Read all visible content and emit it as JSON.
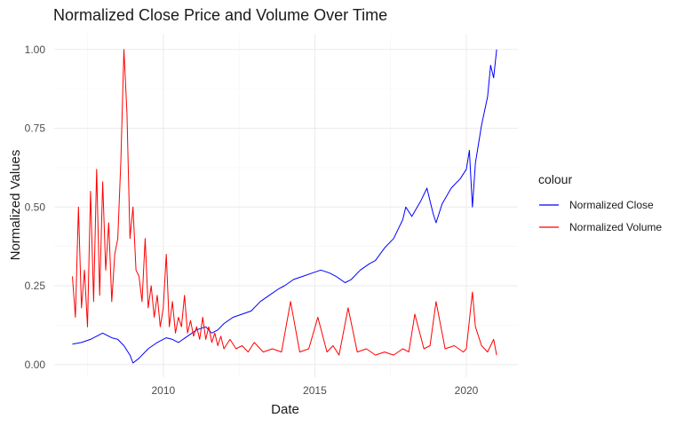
{
  "chart_data": {
    "type": "line",
    "title": "Normalized Close Price and Volume Over Time",
    "xlabel": "Date",
    "ylabel": "Normalized Values",
    "xlim": [
      2006.4,
      2021.7
    ],
    "ylim": [
      -0.04,
      1.05
    ],
    "x_ticks": [
      2010,
      2015,
      2020
    ],
    "y_ticks": [
      0.0,
      0.25,
      0.5,
      0.75,
      1.0
    ],
    "y_tick_labels": [
      "0.00",
      "0.25",
      "0.50",
      "0.75",
      "1.00"
    ],
    "grid": true,
    "legend": {
      "title": "colour",
      "position": "right"
    },
    "series": [
      {
        "name": "Normalized Close",
        "color": "#0000ff",
        "x": [
          2007.0,
          2007.3,
          2007.6,
          2007.8,
          2008.0,
          2008.3,
          2008.5,
          2008.7,
          2008.9,
          2009.0,
          2009.2,
          2009.5,
          2009.8,
          2010.1,
          2010.3,
          2010.5,
          2010.8,
          2011.1,
          2011.4,
          2011.6,
          2011.8,
          2012.0,
          2012.3,
          2012.6,
          2012.9,
          2013.2,
          2013.5,
          2013.8,
          2014.0,
          2014.3,
          2014.6,
          2014.9,
          2015.2,
          2015.5,
          2015.7,
          2016.0,
          2016.2,
          2016.5,
          2016.8,
          2017.0,
          2017.3,
          2017.6,
          2017.9,
          2018.0,
          2018.2,
          2018.5,
          2018.7,
          2018.9,
          2019.0,
          2019.2,
          2019.5,
          2019.8,
          2020.0,
          2020.1,
          2020.2,
          2020.3,
          2020.5,
          2020.7,
          2020.8,
          2020.9,
          2021.0
        ],
        "values": [
          0.065,
          0.07,
          0.08,
          0.09,
          0.1,
          0.085,
          0.08,
          0.06,
          0.03,
          0.005,
          0.02,
          0.05,
          0.07,
          0.085,
          0.08,
          0.07,
          0.09,
          0.11,
          0.12,
          0.1,
          0.11,
          0.13,
          0.15,
          0.16,
          0.17,
          0.2,
          0.22,
          0.24,
          0.25,
          0.27,
          0.28,
          0.29,
          0.3,
          0.29,
          0.28,
          0.26,
          0.27,
          0.3,
          0.32,
          0.33,
          0.37,
          0.4,
          0.46,
          0.5,
          0.47,
          0.52,
          0.56,
          0.48,
          0.45,
          0.51,
          0.56,
          0.59,
          0.62,
          0.68,
          0.5,
          0.64,
          0.76,
          0.85,
          0.95,
          0.91,
          1.0
        ]
      },
      {
        "name": "Normalized Volume",
        "color": "#ff0000",
        "x": [
          2007.0,
          2007.1,
          2007.2,
          2007.3,
          2007.4,
          2007.5,
          2007.6,
          2007.7,
          2007.8,
          2007.9,
          2008.0,
          2008.1,
          2008.2,
          2008.3,
          2008.4,
          2008.5,
          2008.6,
          2008.7,
          2008.8,
          2008.9,
          2009.0,
          2009.1,
          2009.2,
          2009.3,
          2009.4,
          2009.5,
          2009.6,
          2009.7,
          2009.8,
          2009.9,
          2010.0,
          2010.1,
          2010.2,
          2010.3,
          2010.4,
          2010.5,
          2010.6,
          2010.7,
          2010.8,
          2010.9,
          2011.0,
          2011.1,
          2011.2,
          2011.3,
          2011.4,
          2011.5,
          2011.6,
          2011.7,
          2011.8,
          2011.9,
          2012.0,
          2012.2,
          2012.4,
          2012.6,
          2012.8,
          2013.0,
          2013.3,
          2013.6,
          2013.9,
          2014.2,
          2014.5,
          2014.8,
          2015.1,
          2015.4,
          2015.6,
          2015.8,
          2016.1,
          2016.4,
          2016.7,
          2017.0,
          2017.3,
          2017.6,
          2017.9,
          2018.1,
          2018.3,
          2018.6,
          2018.8,
          2019.0,
          2019.3,
          2019.6,
          2019.9,
          2020.0,
          2020.2,
          2020.3,
          2020.5,
          2020.7,
          2020.9,
          2021.0
        ],
        "values": [
          0.28,
          0.15,
          0.5,
          0.18,
          0.3,
          0.12,
          0.55,
          0.2,
          0.62,
          0.22,
          0.58,
          0.3,
          0.45,
          0.2,
          0.35,
          0.4,
          0.65,
          1.0,
          0.8,
          0.4,
          0.5,
          0.3,
          0.28,
          0.2,
          0.4,
          0.18,
          0.25,
          0.15,
          0.22,
          0.12,
          0.18,
          0.35,
          0.12,
          0.2,
          0.1,
          0.15,
          0.12,
          0.22,
          0.1,
          0.14,
          0.09,
          0.12,
          0.08,
          0.15,
          0.08,
          0.12,
          0.07,
          0.1,
          0.06,
          0.09,
          0.05,
          0.08,
          0.05,
          0.06,
          0.04,
          0.07,
          0.04,
          0.05,
          0.04,
          0.2,
          0.04,
          0.05,
          0.15,
          0.04,
          0.06,
          0.03,
          0.18,
          0.04,
          0.05,
          0.03,
          0.04,
          0.03,
          0.05,
          0.04,
          0.16,
          0.05,
          0.06,
          0.2,
          0.05,
          0.06,
          0.04,
          0.05,
          0.23,
          0.12,
          0.06,
          0.04,
          0.08,
          0.03
        ]
      }
    ]
  }
}
